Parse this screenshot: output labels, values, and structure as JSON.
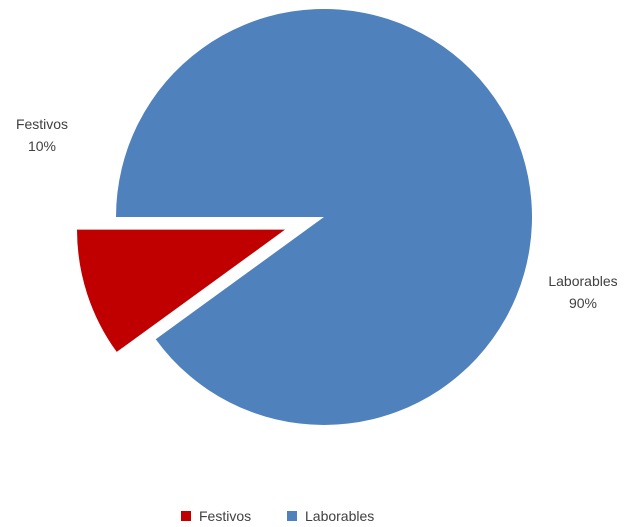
{
  "chart_data": {
    "type": "pie",
    "title": "",
    "categories": [
      "Festivos",
      "Laborables"
    ],
    "values": [
      10,
      90
    ],
    "percent_labels": [
      "10%",
      "90%"
    ],
    "colors": [
      "#C00000",
      "#4F81BD"
    ],
    "exploded_slice": "Festivos",
    "legend": {
      "placement": "bottom",
      "entries": [
        "Festivos",
        "Laborables"
      ]
    }
  }
}
